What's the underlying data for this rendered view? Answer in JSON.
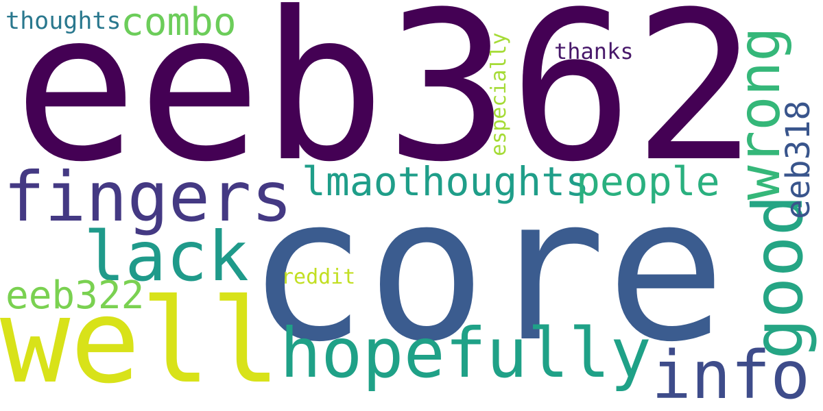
{
  "words": {
    "eeb362": {
      "text": "eeb362",
      "color": "#440154"
    },
    "core": {
      "text": "core",
      "color": "#3b5c8f"
    },
    "well": {
      "text": "well",
      "color": "#d8e219"
    },
    "fingers": {
      "text": "fingers",
      "color": "#443983"
    },
    "hopefully": {
      "text": "hopefully",
      "color": "#1fa187"
    },
    "lack": {
      "text": "lack",
      "color": "#1f9a8a"
    },
    "good": {
      "text": "good",
      "color": "#25a584"
    },
    "wrong": {
      "text": "wrong",
      "color": "#35b779"
    },
    "info": {
      "text": "info",
      "color": "#3e4c8a"
    },
    "lmaothoughts": {
      "text": "lmaothoughts",
      "color": "#1f9e89"
    },
    "people": {
      "text": "people",
      "color": "#2ab07f"
    },
    "eeb318": {
      "text": "eeb318",
      "color": "#39558c"
    },
    "combo": {
      "text": "combo",
      "color": "#6ccd5a"
    },
    "eeb322": {
      "text": "eeb322",
      "color": "#7ad151"
    },
    "thoughts": {
      "text": "thoughts",
      "color": "#2a788e"
    },
    "especially": {
      "text": "especially",
      "color": "#a5db36"
    },
    "thanks": {
      "text": "thanks",
      "color": "#48186a"
    },
    "reddit": {
      "text": "reddit",
      "color": "#c2df23"
    }
  }
}
